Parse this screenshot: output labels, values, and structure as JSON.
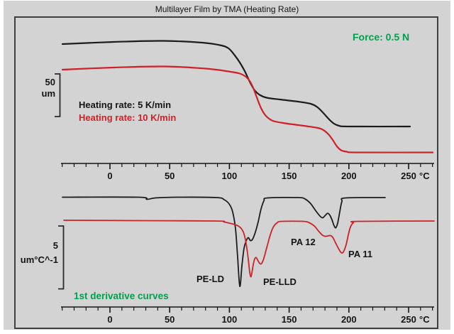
{
  "title": "Multilayer Film by TMA (Heating Rate)",
  "annotations": {
    "force": "Force: 0.5 N"
  },
  "colors": {
    "background": "#d3d3d3",
    "frame": "#3f3f3f",
    "black_curve": "#1c1c1c",
    "red_curve": "#cf2127",
    "green_text": "#00a14e",
    "text": "#141414"
  },
  "x_axis": {
    "unit": "°C",
    "major_ticks": [
      0,
      50,
      100,
      150,
      200,
      250
    ],
    "minor_step": 10,
    "minor_range": [
      -40,
      270
    ]
  },
  "chart_data": [
    {
      "type": "line",
      "title": "",
      "xlabel": "°C",
      "x_range": [
        -40,
        270
      ],
      "grid": false,
      "scale_bar": {
        "value": "50",
        "unit": "um"
      },
      "series": [
        {
          "id": "tma-5kmin",
          "name": "Heating rate: 5 K/min",
          "color_key": "black_curve",
          "points": [
            [
              -39.8,
              0
            ],
            [
              3,
              2.5
            ],
            [
              44.5,
              3.75
            ],
            [
              77.2,
              1.67
            ],
            [
              92,
              -1.25
            ],
            [
              99.2,
              -5
            ],
            [
              104.5,
              -13.33
            ],
            [
              108.7,
              -21.67
            ],
            [
              112.8,
              -31.67
            ],
            [
              117,
              -44.17
            ],
            [
              121.1,
              -54.17
            ],
            [
              125.3,
              -59.58
            ],
            [
              131.2,
              -62.92
            ],
            [
              142.5,
              -65
            ],
            [
              157.4,
              -67.5
            ],
            [
              168,
              -70
            ],
            [
              173.4,
              -73.75
            ],
            [
              178.1,
              -80
            ],
            [
              182.9,
              -87.5
            ],
            [
              187.1,
              -92.92
            ],
            [
              191.8,
              -95.83
            ],
            [
              200.1,
              -96.67
            ],
            [
              251.2,
              -96.67
            ]
          ]
        },
        {
          "id": "tma-10kmin",
          "name": "Heating rate: 10 K/min",
          "color_key": "red_curve",
          "points": [
            [
              -39.8,
              0
            ],
            [
              3,
              2.5
            ],
            [
              44.5,
              3.75
            ],
            [
              80.2,
              1.25
            ],
            [
              99.2,
              -2.08
            ],
            [
              108.7,
              -4.58
            ],
            [
              113.4,
              -7.92
            ],
            [
              117,
              -13.33
            ],
            [
              120,
              -21.67
            ],
            [
              122.9,
              -32.5
            ],
            [
              125.9,
              -43.33
            ],
            [
              128.9,
              -51.25
            ],
            [
              132.4,
              -56.67
            ],
            [
              137.2,
              -60.42
            ],
            [
              146.7,
              -62.92
            ],
            [
              162.1,
              -65.83
            ],
            [
              174,
              -68.33
            ],
            [
              178.7,
              -70.83
            ],
            [
              182.9,
              -75.83
            ],
            [
              186.5,
              -82.5
            ],
            [
              190,
              -90
            ],
            [
              193.6,
              -94.58
            ],
            [
              198.3,
              -96.25
            ],
            [
              207.8,
              -97.08
            ],
            [
              270.2,
              -97.08
            ]
          ]
        }
      ]
    },
    {
      "type": "line",
      "title": "1st derivative curves",
      "xlabel": "°C",
      "x_range": [
        -40,
        270
      ],
      "grid": false,
      "scale_bar": {
        "value": "5",
        "unit": "um°C^-1"
      },
      "series": [
        {
          "id": "deriv-5kmin",
          "name": "5 K/min",
          "color_key": "black_curve",
          "points": [
            [
              -39.8,
              0.03
            ],
            [
              23.8,
              0.03
            ],
            [
              30.9,
              -0.14
            ],
            [
              38,
              -0.03
            ],
            [
              56.4,
              0.03
            ],
            [
              89.1,
              0
            ],
            [
              95.6,
              -0.17
            ],
            [
              99.8,
              -0.51
            ],
            [
              102.7,
              -1.12
            ],
            [
              105.1,
              -2.47
            ],
            [
              106.9,
              -4.72
            ],
            [
              108.7,
              -7.02
            ],
            [
              110.5,
              -5.34
            ],
            [
              112.2,
              -4.04
            ],
            [
              114,
              -3.43
            ],
            [
              115.8,
              -3.17
            ],
            [
              117.6,
              -3.4
            ],
            [
              119.4,
              -3.29
            ],
            [
              121.7,
              -2.75
            ],
            [
              124.1,
              -1.91
            ],
            [
              126.5,
              -0.9
            ],
            [
              128.9,
              -0.25
            ],
            [
              131.8,
              -0.03
            ],
            [
              157.4,
              0
            ],
            [
              163.3,
              -0.11
            ],
            [
              168,
              -0.48
            ],
            [
              172.2,
              -1.04
            ],
            [
              175.8,
              -1.46
            ],
            [
              178.1,
              -1.6
            ],
            [
              180.5,
              -1.38
            ],
            [
              182.3,
              -1.24
            ],
            [
              184.1,
              -1.4
            ],
            [
              185.9,
              -1.77
            ],
            [
              187.6,
              -2.22
            ],
            [
              189.1,
              -2.39
            ],
            [
              190.6,
              -2.02
            ],
            [
              192.4,
              -1.12
            ],
            [
              194.2,
              -0.31
            ],
            [
              197.1,
              -0.03
            ],
            [
              230.4,
              0
            ]
          ]
        },
        {
          "id": "deriv-10kmin",
          "name": "10 K/min",
          "color_key": "red_curve",
          "points": [
            [
              -38.6,
              0.06
            ],
            [
              26.7,
              0.03
            ],
            [
              89.1,
              0
            ],
            [
              95.6,
              -0.08
            ],
            [
              101.5,
              -0.2
            ],
            [
              106.3,
              -0.34
            ],
            [
              109.9,
              -0.59
            ],
            [
              112.2,
              -1.01
            ],
            [
              114,
              -1.8
            ],
            [
              115.8,
              -3.03
            ],
            [
              117,
              -4.04
            ],
            [
              117.9,
              -4.41
            ],
            [
              118.8,
              -4.1
            ],
            [
              120,
              -3.43
            ],
            [
              121.1,
              -3.01
            ],
            [
              122.3,
              -2.89
            ],
            [
              123.5,
              -3.06
            ],
            [
              125,
              -3.31
            ],
            [
              126.5,
              -3.4
            ],
            [
              128,
              -3.17
            ],
            [
              129.5,
              -2.72
            ],
            [
              131.8,
              -1.91
            ],
            [
              134.2,
              -1.1
            ],
            [
              136.6,
              -0.51
            ],
            [
              139.5,
              -0.17
            ],
            [
              143.7,
              -0.03
            ],
            [
              162.1,
              -0.03
            ],
            [
              166.9,
              -0.14
            ],
            [
              171,
              -0.39
            ],
            [
              174.6,
              -0.79
            ],
            [
              177.6,
              -1.1
            ],
            [
              179.9,
              -1.21
            ],
            [
              182.3,
              -1.18
            ],
            [
              184.7,
              -1.15
            ],
            [
              186.5,
              -1.29
            ],
            [
              188.8,
              -1.71
            ],
            [
              191.2,
              -2.16
            ],
            [
              193,
              -2.44
            ],
            [
              194.5,
              -2.53
            ],
            [
              196,
              -2.33
            ],
            [
              197.8,
              -1.83
            ],
            [
              199.5,
              -1.1
            ],
            [
              201.3,
              -0.48
            ],
            [
              203.7,
              -0.14
            ],
            [
              207.8,
              -0.03
            ],
            [
              271.4,
              0
            ]
          ]
        }
      ],
      "annotations": [
        {
          "label": "PE-LD",
          "T_approx": 110
        },
        {
          "label": "PE-LLD",
          "T_approx": 120
        },
        {
          "label": "PA 12",
          "T_approx": 178
        },
        {
          "label": "PA 11",
          "T_approx": 192
        }
      ]
    }
  ]
}
